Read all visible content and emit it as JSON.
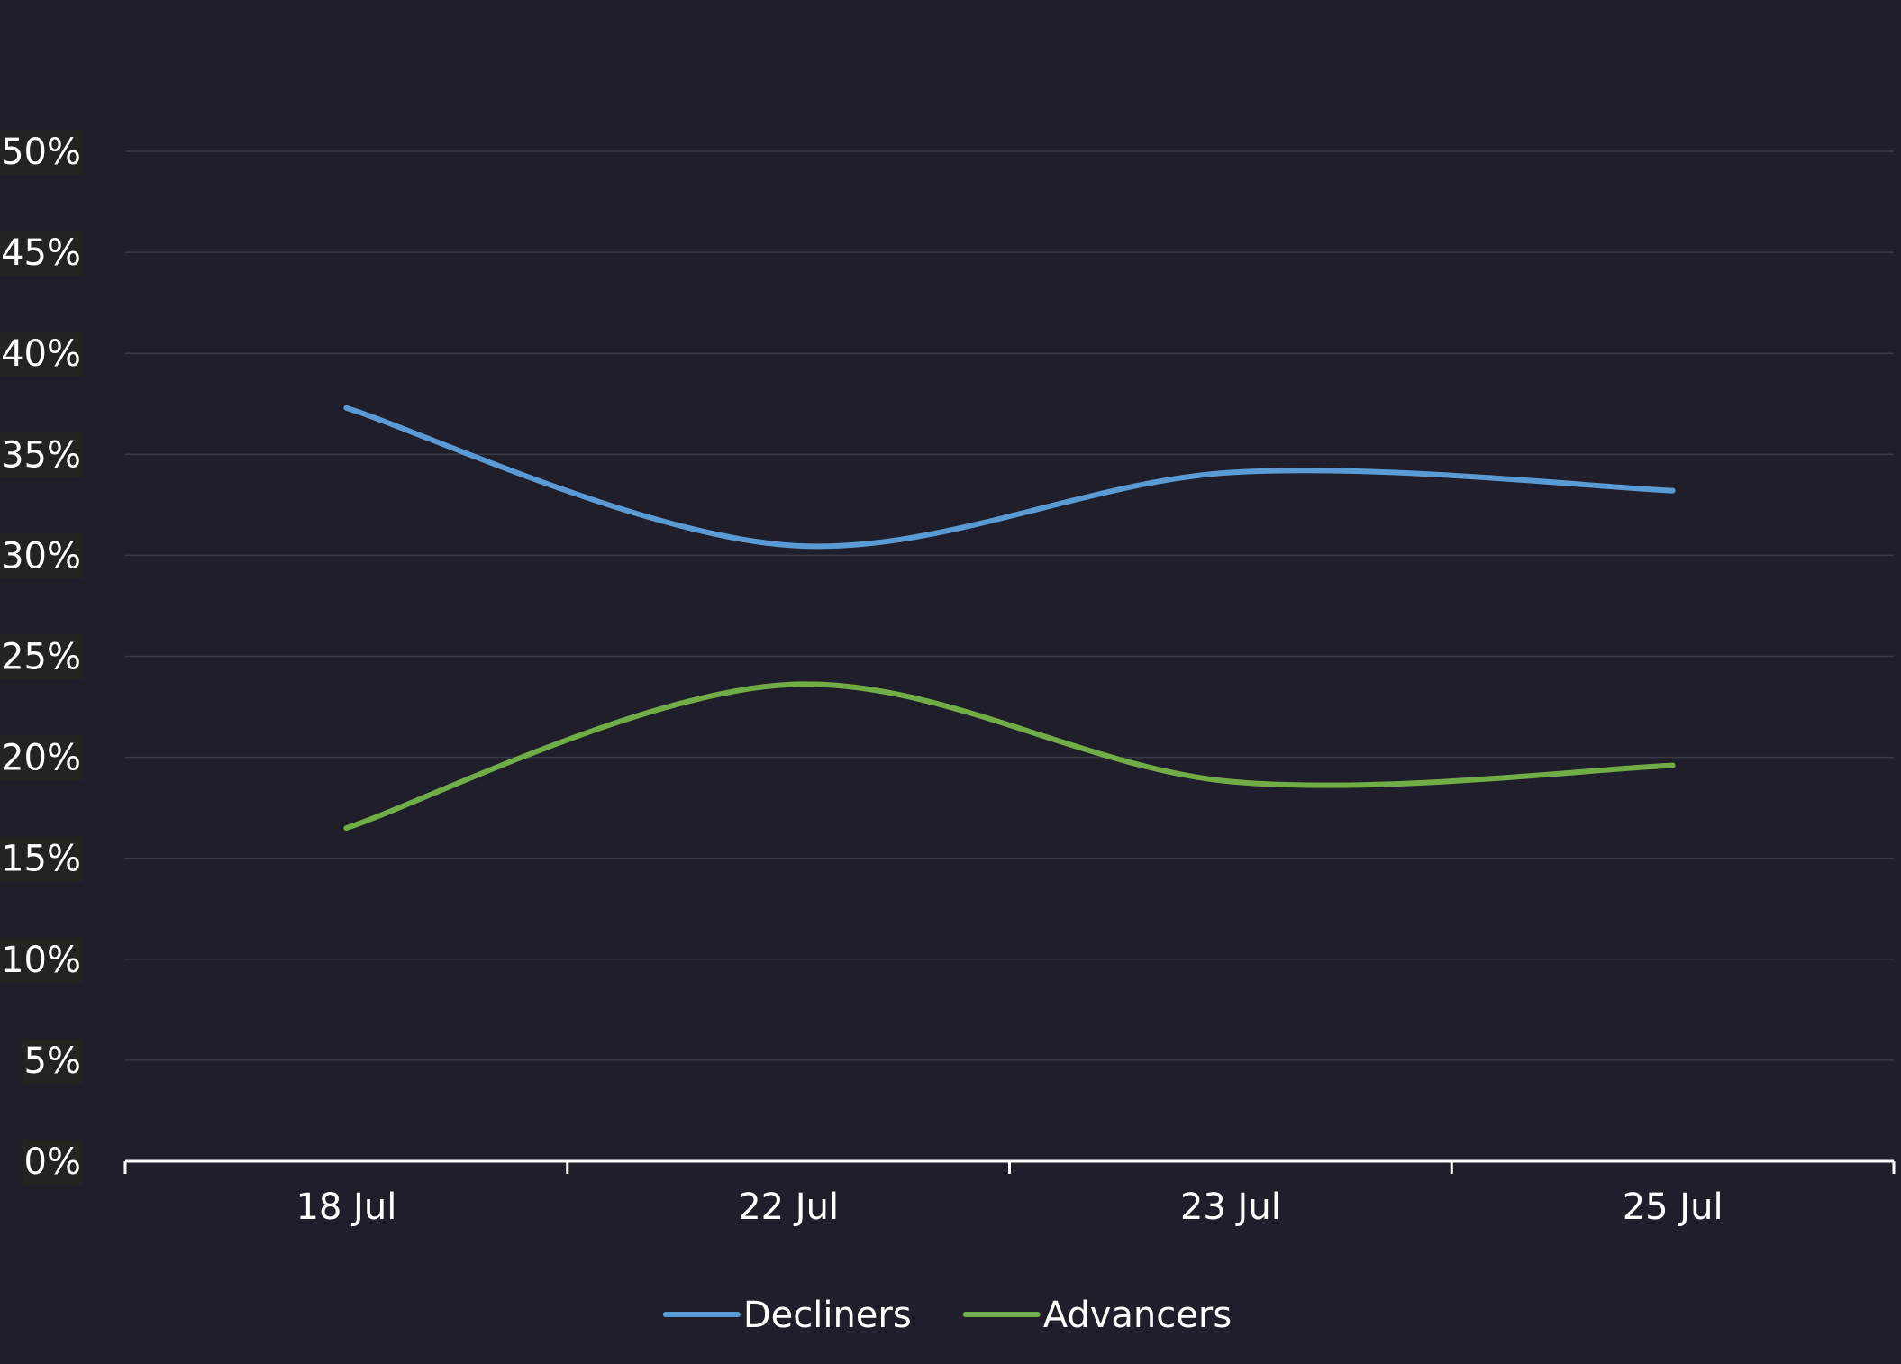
{
  "chart_data": {
    "type": "line",
    "title": "",
    "xlabel": "",
    "ylabel": "",
    "categories": [
      "18 Jul",
      "22 Jul",
      "23 Jul",
      "25 Jul"
    ],
    "y_ticks": [
      "0%",
      "5%",
      "10%",
      "15%",
      "20%",
      "25%",
      "30%",
      "35%",
      "40%",
      "45%",
      "50%"
    ],
    "ylim": [
      0,
      50
    ],
    "y_unit": "%",
    "grid": true,
    "legend_position": "bottom",
    "smooth": true,
    "background_color": "#1f1e2a",
    "series": [
      {
        "name": "Decliners",
        "color": "#5b9bd5",
        "values": [
          37.3,
          30.5,
          34.1,
          33.2
        ]
      },
      {
        "name": "Advancers",
        "color": "#70ad47",
        "values": [
          16.5,
          23.6,
          18.8,
          19.6
        ]
      }
    ]
  }
}
